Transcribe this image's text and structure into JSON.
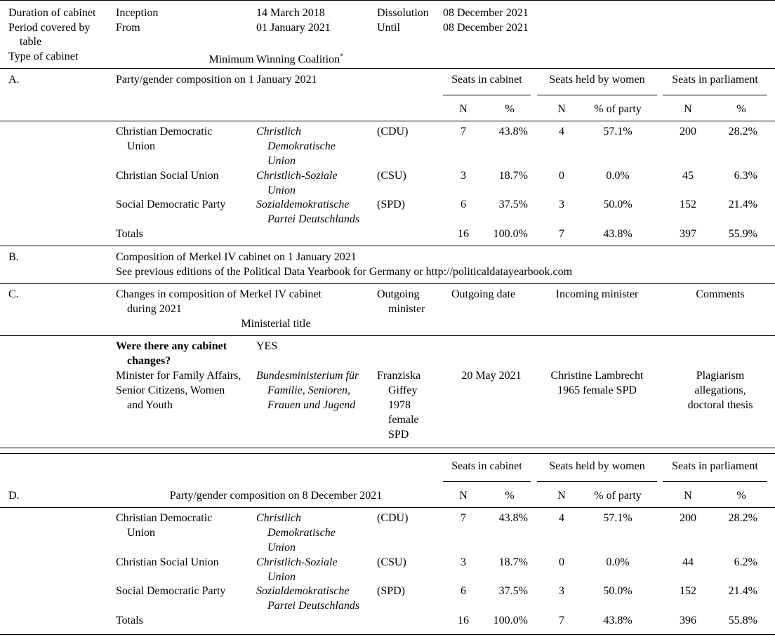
{
  "header": {
    "duration_label": "Duration of cabinet",
    "inception_label": "Inception",
    "inception_date": "14 March 2018",
    "dissolution_label": "Dissolution",
    "dissolution_date": "08 December 2021",
    "period_label_1": "Period covered by",
    "period_label_2": "table",
    "from_label": "From",
    "from_date": "01 January 2021",
    "until_label": "Until",
    "until_date": "08 December 2021",
    "type_label": "Type of cabinet",
    "type_value": "Minimum Winning Coalition",
    "type_footnote": "*"
  },
  "col_headers": {
    "seats_cabinet": "Seats in cabinet",
    "seats_women": "Seats held by women",
    "seats_parliament": "Seats in parliament",
    "n": "N",
    "pct": "%",
    "pct_party": "% of party"
  },
  "section_a": {
    "letter": "A.",
    "title": "Party/gender composition on 1 January 2021",
    "rows": [
      {
        "name": [
          "Christian Democratic",
          "Union"
        ],
        "native": [
          "Christlich",
          "Demokratische",
          "Union"
        ],
        "abbr": "(CDU)",
        "cab_n": "7",
        "cab_pct": "43.8%",
        "w_n": "4",
        "w_pct": "57.1%",
        "parl_n": "200",
        "parl_pct": "28.2%"
      },
      {
        "name": [
          "Christian Social Union"
        ],
        "native": [
          "Christlich-Soziale",
          "Union"
        ],
        "abbr": "(CSU)",
        "cab_n": "3",
        "cab_pct": "18.7%",
        "w_n": "0",
        "w_pct": "0.0%",
        "parl_n": "45",
        "parl_pct": "6.3%"
      },
      {
        "name": [
          "Social Democratic Party"
        ],
        "native": [
          "Sozialdemokratische",
          "Partei Deutschlands"
        ],
        "abbr": "(SPD)",
        "cab_n": "6",
        "cab_pct": "37.5%",
        "w_n": "3",
        "w_pct": "50.0%",
        "parl_n": "152",
        "parl_pct": "21.4%"
      }
    ],
    "totals": {
      "label": "Totals",
      "cab_n": "16",
      "cab_pct": "100.0%",
      "w_n": "7",
      "w_pct": "43.8%",
      "parl_n": "397",
      "parl_pct": "55.9%"
    }
  },
  "section_b": {
    "letter": "B.",
    "title": "Composition of Merkel IV cabinet on 1 January 2021",
    "note": "See previous editions of the Political Data Yearbook for Germany or http://politicaldatayearbook.com"
  },
  "section_c": {
    "letter": "C.",
    "title_1": "Changes in composition of Merkel IV cabinet",
    "title_2": "during 2021",
    "ministerial_title": "Ministerial title",
    "outgoing_1": "Outgoing",
    "outgoing_2": "minister",
    "outgoing_date": "Outgoing date",
    "incoming": "Incoming minister",
    "comments": "Comments",
    "question_1": "Were there any cabinet",
    "question_2": "changes?",
    "answer": "YES",
    "change": {
      "title": [
        "Minister for Family Affairs,",
        "Senior Citizens, Women",
        "and Youth"
      ],
      "native": [
        "Bundesministerium für",
        "Familie, Senioren,",
        "Frauen und Jugend"
      ],
      "outgoing": [
        "Franziska",
        "Giffey",
        "1978",
        "female",
        "SPD"
      ],
      "date": "20 May 2021",
      "incoming": [
        "Christine Lambrecht",
        "1965 female SPD"
      ],
      "comments": [
        "Plagiarism",
        "allegations,",
        "doctoral thesis"
      ]
    }
  },
  "section_d": {
    "letter": "D.",
    "title": "Party/gender composition on 8 December 2021",
    "rows": [
      {
        "name": [
          "Christian Democratic",
          "Union"
        ],
        "native": [
          "Christlich",
          "Demokratische",
          "Union"
        ],
        "abbr": "(CDU)",
        "cab_n": "7",
        "cab_pct": "43.8%",
        "w_n": "4",
        "w_pct": "57.1%",
        "parl_n": "200",
        "parl_pct": "28.2%"
      },
      {
        "name": [
          "Christian Social Union"
        ],
        "native": [
          "Christlich-Soziale",
          "Union"
        ],
        "abbr": "(CSU)",
        "cab_n": "3",
        "cab_pct": "18.7%",
        "w_n": "0",
        "w_pct": "0.0%",
        "parl_n": "44",
        "parl_pct": "6.2%"
      },
      {
        "name": [
          "Social Democratic Party"
        ],
        "native": [
          "Sozialdemokratische",
          "Partei Deutschlands"
        ],
        "abbr": "(SPD)",
        "cab_n": "6",
        "cab_pct": "37.5%",
        "w_n": "3",
        "w_pct": "50.0%",
        "parl_n": "152",
        "parl_pct": "21.4%"
      }
    ],
    "totals": {
      "label": "Totals",
      "cab_n": "16",
      "cab_pct": "100.0%",
      "w_n": "7",
      "w_pct": "43.8%",
      "parl_n": "396",
      "parl_pct": "55.8%"
    }
  }
}
